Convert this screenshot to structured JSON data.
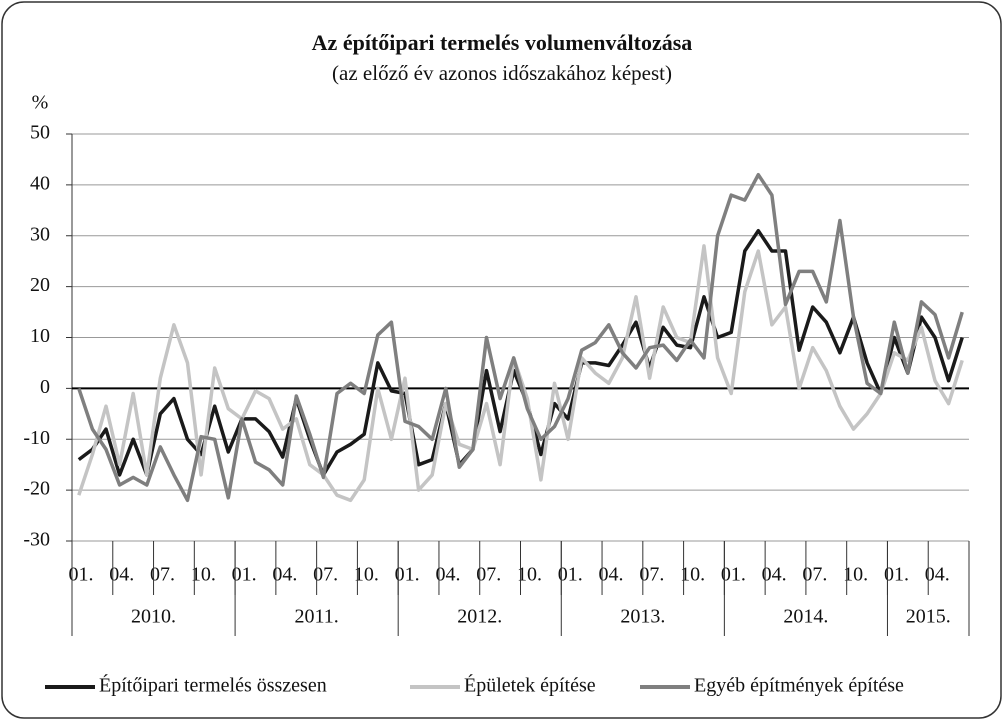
{
  "chart_data": {
    "type": "line",
    "title": "Az építőipari termelés volumenváltozása",
    "subtitle": "(az előző év azonos időszakához képest)",
    "y_label": "%",
    "categories": [
      "01.",
      null,
      null,
      "04.",
      null,
      null,
      "07.",
      null,
      null,
      "10.",
      null,
      null,
      "01.",
      null,
      null,
      "04.",
      null,
      null,
      "07.",
      null,
      null,
      "10.",
      null,
      null,
      "01.",
      null,
      null,
      "04.",
      null,
      null,
      "07.",
      null,
      null,
      "10.",
      null,
      null,
      "01.",
      null,
      null,
      "04.",
      null,
      null,
      "07.",
      null,
      null,
      "10.",
      null,
      null,
      "01.",
      null,
      null,
      "04.",
      null,
      null,
      "07.",
      null,
      null,
      "10.",
      null,
      null,
      "01.",
      null,
      null,
      "04.",
      null,
      null
    ],
    "years": [
      "2010.",
      "2011.",
      "2012.",
      "2013.",
      "2014.",
      "2015."
    ],
    "ylim": [
      -30,
      50
    ],
    "yticks": [
      -30,
      -20,
      -10,
      0,
      10,
      20,
      30,
      40,
      50
    ],
    "grid": true,
    "series": [
      {
        "name": "Építőipari termelés összesen",
        "color": "#1a1a1a",
        "values": [
          -14,
          -12,
          -8,
          -17,
          -10,
          -17,
          -5,
          -2,
          -10,
          -13,
          -3.5,
          -12.5,
          -6,
          -6,
          -8.5,
          -13.5,
          -2,
          -10,
          -17,
          -12.5,
          -11,
          -9,
          5,
          -0.5,
          -1,
          -15,
          -14,
          -3,
          -15,
          -12,
          3.5,
          -8.5,
          3.5,
          -3,
          -13,
          -3,
          -6,
          5,
          5,
          4.5,
          8.5,
          13,
          4,
          12,
          8.5,
          8,
          18,
          10,
          11,
          27,
          31,
          27,
          27,
          7.5,
          16,
          13,
          7,
          14,
          5,
          -1,
          10,
          3,
          14,
          10,
          1.5,
          10
        ]
      },
      {
        "name": "Épületek építése",
        "color": "#c4c4c4",
        "values": [
          -21,
          -13,
          -3.5,
          -15,
          -1,
          -17,
          2,
          12.5,
          5,
          -17,
          4,
          -4,
          -6,
          -0.5,
          -2,
          -8,
          -6,
          -15,
          -17,
          -21,
          -22,
          -18,
          0,
          -10,
          2,
          -20,
          -17,
          -3,
          -11,
          -12,
          -3,
          -15,
          6,
          -2,
          -18,
          1,
          -10,
          6,
          3,
          1,
          6,
          18,
          2,
          16,
          10,
          9,
          28,
          6,
          -1,
          19,
          27,
          12.5,
          16,
          0,
          8,
          3.5,
          -3.5,
          -8,
          -5,
          -1,
          7,
          5.5,
          12,
          1.5,
          -3,
          5.5
        ]
      },
      {
        "name": "Egyéb építmények építése",
        "color": "#7f7f7f",
        "values": [
          0,
          -8,
          -12,
          -19,
          -17.5,
          -19,
          -11.5,
          -17,
          -22,
          -9.5,
          -10,
          -21.5,
          -6,
          -14.5,
          -16,
          -19,
          -1.5,
          -9,
          -17.5,
          -1,
          1,
          -1,
          10.5,
          13,
          -6.5,
          -7.5,
          -10,
          0,
          -15.5,
          -12,
          10,
          -2,
          6,
          -4,
          -10,
          -7.5,
          -2,
          7.5,
          9,
          12.5,
          7,
          4,
          8,
          8.5,
          5.5,
          9.5,
          6,
          30,
          38,
          37,
          42,
          38,
          16.5,
          23,
          23,
          17,
          33,
          14,
          1,
          -1,
          13,
          3,
          17,
          14.5,
          6,
          15
        ]
      }
    ]
  }
}
